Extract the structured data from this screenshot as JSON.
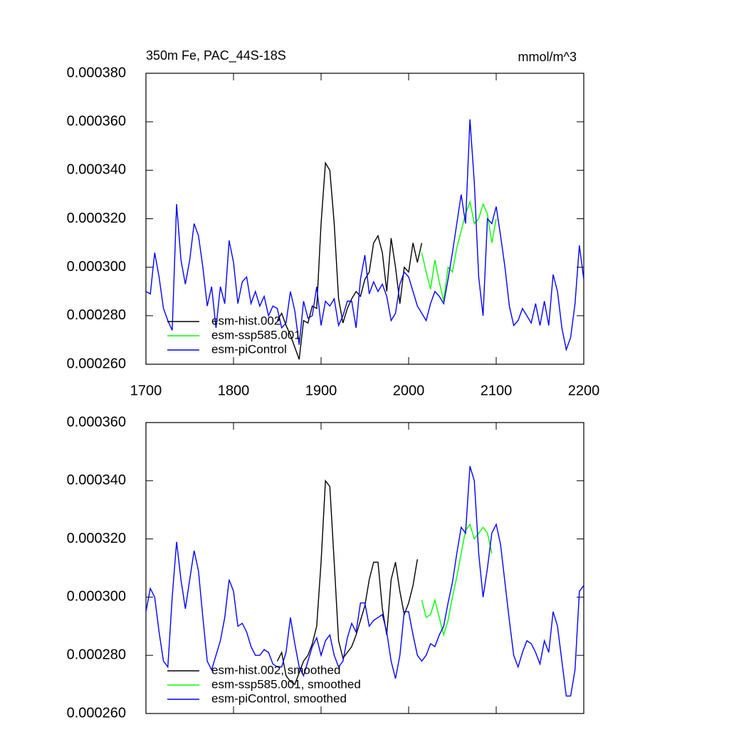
{
  "chart_data": [
    {
      "type": "line",
      "title": "350m Fe, PAC_44S-18S",
      "units": "mmol/m^3",
      "xlim": [
        1700,
        2200
      ],
      "xticks": [
        1700,
        1800,
        1900,
        2000,
        2100,
        2200
      ],
      "xtick_labels": true,
      "ylim": [
        0.00026,
        0.00038
      ],
      "yticks": [
        {
          "value": 0.00026,
          "label": "0.000260"
        },
        {
          "value": 0.00028,
          "label": "0.000280"
        },
        {
          "value": 0.0003,
          "label": "0.000300"
        },
        {
          "value": 0.00032,
          "label": "0.000320"
        },
        {
          "value": 0.00034,
          "label": "0.000340"
        },
        {
          "value": 0.00036,
          "label": "0.000360"
        },
        {
          "value": 0.00038,
          "label": "0.000380"
        }
      ],
      "legend": "lower left",
      "series": [
        {
          "name": "esm-hist.002",
          "color": "#000000",
          "x": [
            1850,
            1855,
            1860,
            1865,
            1870,
            1875,
            1880,
            1885,
            1890,
            1895,
            1900,
            1905,
            1910,
            1915,
            1920,
            1925,
            1930,
            1935,
            1940,
            1945,
            1950,
            1955,
            1960,
            1965,
            1970,
            1975,
            1980,
            1985,
            1990,
            1995,
            2000,
            2005,
            2010,
            2015
          ],
          "values": [
            0.000278,
            0.000281,
            0.000276,
            0.000272,
            0.000267,
            0.000262,
            0.000278,
            0.000277,
            0.000284,
            0.000283,
            0.000318,
            0.000343,
            0.00034,
            0.000318,
            0.000287,
            0.000277,
            0.000283,
            0.000287,
            0.00029,
            0.000288,
            0.000295,
            0.000298,
            0.00031,
            0.000313,
            0.000306,
            0.00029,
            0.000312,
            0.0003,
            0.000285,
            0.0003,
            0.000298,
            0.00031,
            0.000302,
            0.00031
          ]
        },
        {
          "name": "esm-ssp585.001",
          "color": "#00ff00",
          "x": [
            2015,
            2020,
            2025,
            2030,
            2035,
            2040,
            2045,
            2050,
            2055,
            2060,
            2065,
            2070,
            2075,
            2080,
            2085,
            2090,
            2095,
            2100
          ],
          "values": [
            0.000306,
            0.000298,
            0.000291,
            0.000303,
            0.000294,
            0.000286,
            0.0003,
            0.000298,
            0.000308,
            0.000315,
            0.000322,
            0.000327,
            0.000318,
            0.00032,
            0.000326,
            0.000322,
            0.00031,
            0.00032
          ]
        },
        {
          "name": "esm-piControl",
          "color": "#0000ff",
          "x": [
            1700,
            1705,
            1710,
            1715,
            1720,
            1725,
            1730,
            1735,
            1740,
            1745,
            1750,
            1755,
            1760,
            1765,
            1770,
            1775,
            1780,
            1785,
            1790,
            1795,
            1800,
            1805,
            1810,
            1815,
            1820,
            1825,
            1830,
            1835,
            1840,
            1845,
            1850,
            1855,
            1860,
            1865,
            1870,
            1875,
            1880,
            1885,
            1890,
            1895,
            1900,
            1905,
            1910,
            1915,
            1920,
            1925,
            1930,
            1935,
            1940,
            1945,
            1950,
            1955,
            1960,
            1965,
            1970,
            1975,
            1980,
            1985,
            1990,
            1995,
            2000,
            2005,
            2010,
            2015,
            2020,
            2025,
            2030,
            2035,
            2040,
            2045,
            2050,
            2055,
            2060,
            2065,
            2070,
            2075,
            2080,
            2085,
            2090,
            2095,
            2100,
            2105,
            2110,
            2115,
            2120,
            2125,
            2130,
            2135,
            2140,
            2145,
            2150,
            2155,
            2160,
            2165,
            2170,
            2175,
            2180,
            2185,
            2190,
            2195,
            2200
          ],
          "values": [
            0.00029,
            0.000289,
            0.000306,
            0.000296,
            0.000283,
            0.000278,
            0.000274,
            0.000326,
            0.000303,
            0.000293,
            0.000303,
            0.000318,
            0.000313,
            0.0003,
            0.000284,
            0.000292,
            0.000275,
            0.000292,
            0.000285,
            0.000311,
            0.000302,
            0.000285,
            0.000294,
            0.000296,
            0.000285,
            0.00029,
            0.000284,
            0.000288,
            0.00028,
            0.000284,
            0.000283,
            0.000275,
            0.000277,
            0.00029,
            0.000282,
            0.000268,
            0.000286,
            0.000279,
            0.00028,
            0.000292,
            0.000276,
            0.000286,
            0.000284,
            0.000287,
            0.000276,
            0.00028,
            0.000286,
            0.000286,
            0.000275,
            0.000295,
            0.000305,
            0.000289,
            0.000294,
            0.00029,
            0.000293,
            0.000288,
            0.000278,
            0.000281,
            0.000293,
            0.000298,
            0.000296,
            0.00029,
            0.000284,
            0.000281,
            0.000278,
            0.000285,
            0.00029,
            0.000288,
            0.000285,
            0.000295,
            0.000306,
            0.000318,
            0.00033,
            0.000318,
            0.000361,
            0.000335,
            0.000296,
            0.00028,
            0.00032,
            0.000318,
            0.000325,
            0.000313,
            0.0003,
            0.000284,
            0.000276,
            0.000278,
            0.000283,
            0.00028,
            0.000277,
            0.000285,
            0.000276,
            0.000286,
            0.000276,
            0.000297,
            0.00029,
            0.000275,
            0.000266,
            0.000271,
            0.000285,
            0.000309,
            0.000295
          ]
        }
      ]
    },
    {
      "type": "line",
      "xlim": [
        1700,
        2200
      ],
      "xticks": [
        1700,
        1800,
        1900,
        2000,
        2100,
        2200
      ],
      "xtick_labels": false,
      "ylim": [
        0.00026,
        0.00036
      ],
      "yticks": [
        {
          "value": 0.00026,
          "label": "0.000260"
        },
        {
          "value": 0.00028,
          "label": "0.000280"
        },
        {
          "value": 0.0003,
          "label": "0.000300"
        },
        {
          "value": 0.00032,
          "label": "0.000320"
        },
        {
          "value": 0.00034,
          "label": "0.000340"
        },
        {
          "value": 0.00036,
          "label": "0.000360"
        }
      ],
      "legend": "lower left",
      "series": [
        {
          "name": "esm-hist.002, smoothed",
          "color": "#000000",
          "x": [
            1850,
            1855,
            1860,
            1865,
            1870,
            1875,
            1880,
            1885,
            1890,
            1895,
            1900,
            1905,
            1910,
            1915,
            1920,
            1925,
            1930,
            1935,
            1940,
            1945,
            1950,
            1955,
            1960,
            1965,
            1970,
            1975,
            1980,
            1985,
            1990,
            1995,
            2000,
            2005,
            2010
          ],
          "values": [
            0.000278,
            0.000281,
            0.000273,
            0.000271,
            0.00027,
            0.000274,
            0.000278,
            0.00028,
            0.000284,
            0.00029,
            0.000312,
            0.00034,
            0.000338,
            0.000312,
            0.000285,
            0.000279,
            0.000281,
            0.000283,
            0.000287,
            0.000292,
            0.000297,
            0.000306,
            0.000312,
            0.000312,
            0.000296,
            0.000287,
            0.000306,
            0.000312,
            0.000302,
            0.000294,
            0.000298,
            0.000304,
            0.000313
          ]
        },
        {
          "name": "esm-ssp585.001, smoothed",
          "color": "#00ff00",
          "x": [
            2015,
            2020,
            2025,
            2030,
            2035,
            2040,
            2045,
            2050,
            2055,
            2060,
            2065,
            2070,
            2075,
            2080,
            2085,
            2090,
            2095
          ],
          "values": [
            0.000299,
            0.000293,
            0.000294,
            0.000299,
            0.000293,
            0.000287,
            0.000292,
            0.0003,
            0.000307,
            0.000315,
            0.000323,
            0.000325,
            0.00032,
            0.000322,
            0.000324,
            0.000322,
            0.000315
          ]
        },
        {
          "name": "esm-piControl, smoothed",
          "color": "#0000ff",
          "x": [
            1700,
            1705,
            1710,
            1715,
            1720,
            1725,
            1730,
            1735,
            1740,
            1745,
            1750,
            1755,
            1760,
            1765,
            1770,
            1775,
            1780,
            1785,
            1790,
            1795,
            1800,
            1805,
            1810,
            1815,
            1820,
            1825,
            1830,
            1835,
            1840,
            1845,
            1850,
            1855,
            1860,
            1865,
            1870,
            1875,
            1880,
            1885,
            1890,
            1895,
            1900,
            1905,
            1910,
            1915,
            1920,
            1925,
            1930,
            1935,
            1940,
            1945,
            1950,
            1955,
            1960,
            1965,
            1970,
            1975,
            1980,
            1985,
            1990,
            1995,
            2000,
            2005,
            2010,
            2015,
            2020,
            2025,
            2030,
            2035,
            2040,
            2045,
            2050,
            2055,
            2060,
            2065,
            2070,
            2075,
            2080,
            2085,
            2090,
            2095,
            2100,
            2105,
            2110,
            2115,
            2120,
            2125,
            2130,
            2135,
            2140,
            2145,
            2150,
            2155,
            2160,
            2165,
            2170,
            2175,
            2180,
            2185,
            2190,
            2195,
            2200
          ],
          "values": [
            0.000295,
            0.000303,
            0.0003,
            0.000288,
            0.000278,
            0.000276,
            0.0003,
            0.000319,
            0.000306,
            0.000296,
            0.000306,
            0.000316,
            0.000309,
            0.000293,
            0.000278,
            0.000275,
            0.00028,
            0.000285,
            0.000293,
            0.000306,
            0.000302,
            0.00029,
            0.000291,
            0.000288,
            0.000283,
            0.00028,
            0.00028,
            0.000282,
            0.000281,
            0.000277,
            0.000276,
            0.000276,
            0.000281,
            0.000293,
            0.000284,
            0.000276,
            0.000273,
            0.000278,
            0.000283,
            0.000286,
            0.00028,
            0.000285,
            0.000287,
            0.00028,
            0.000276,
            0.000278,
            0.000286,
            0.000291,
            0.000288,
            0.000298,
            0.000298,
            0.00029,
            0.000292,
            0.000293,
            0.000294,
            0.000288,
            0.000278,
            0.000272,
            0.00028,
            0.000295,
            0.000295,
            0.000287,
            0.00028,
            0.000278,
            0.00028,
            0.000284,
            0.000283,
            0.000287,
            0.00029,
            0.000298,
            0.000305,
            0.000315,
            0.000324,
            0.000322,
            0.000345,
            0.00034,
            0.000315,
            0.0003,
            0.00031,
            0.000322,
            0.000325,
            0.000318,
            0.000305,
            0.000292,
            0.00028,
            0.000276,
            0.000281,
            0.000285,
            0.000284,
            0.000281,
            0.000277,
            0.000285,
            0.000281,
            0.000295,
            0.00029,
            0.000278,
            0.000266,
            0.000266,
            0.000275,
            0.000302,
            0.000304
          ]
        }
      ]
    }
  ]
}
